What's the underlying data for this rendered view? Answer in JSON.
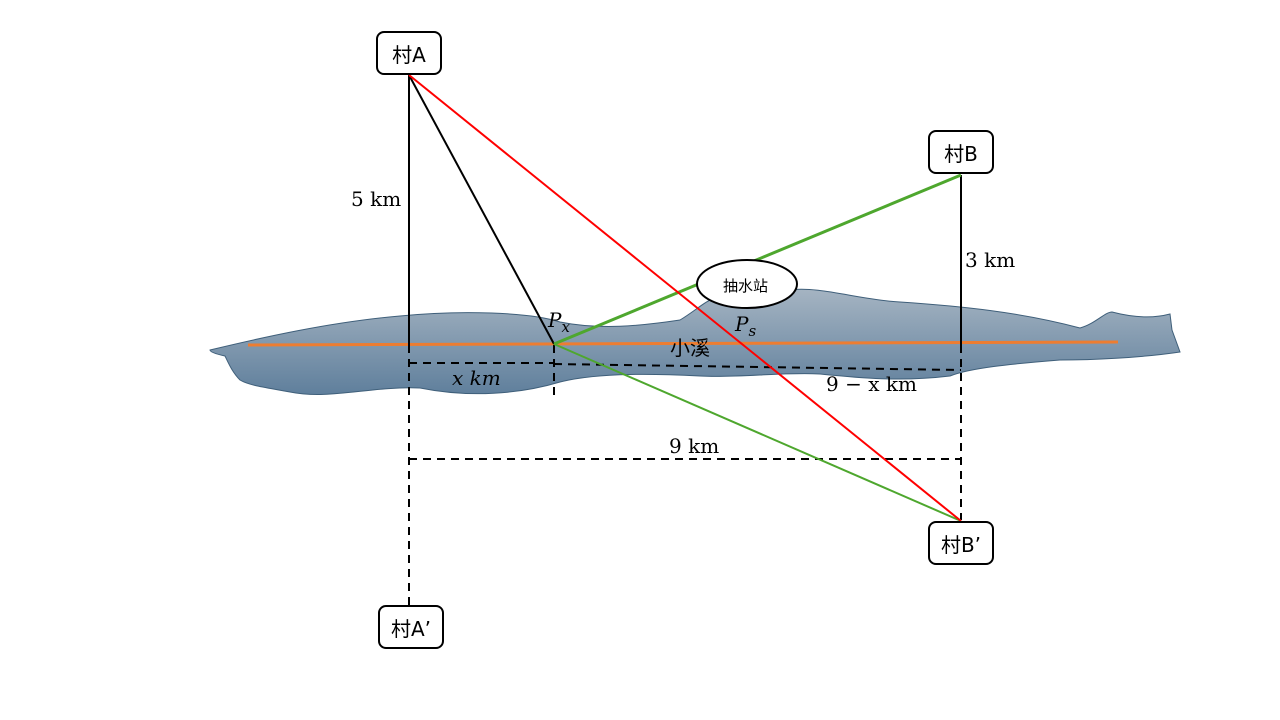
{
  "villages": {
    "A": "村A",
    "B": "村B",
    "A_prime": "村A’",
    "B_prime": "村B’"
  },
  "labels": {
    "dist_A": "5 km",
    "dist_B": "3 km",
    "x_dist": "x km",
    "remainder_dist": "9 − x km",
    "total_dist": "9 km",
    "stream": "小溪",
    "pump_station": "抽水站",
    "point_px_main": "P",
    "point_px_sub": "x",
    "point_ps_main": "P",
    "point_ps_sub": "s"
  },
  "colors": {
    "stream_fill": "#7f97ad",
    "stream_edge": "#3f5f7a",
    "stream_line": "#ed7d31",
    "red_path": "#ff0000",
    "green_path": "#4ea72e",
    "construction": "#000000"
  }
}
